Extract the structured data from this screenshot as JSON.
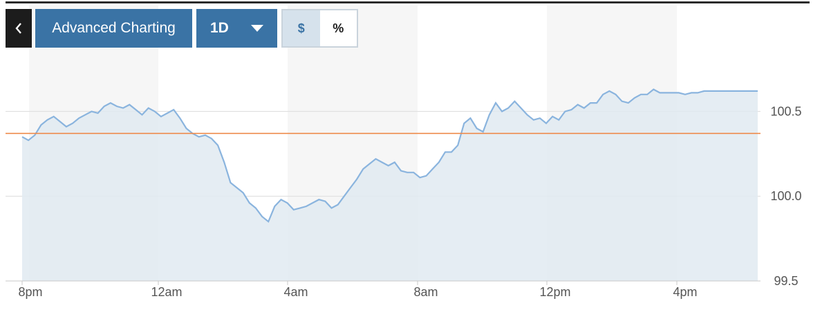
{
  "toolbar": {
    "back_icon": "chevron-left-icon",
    "advanced_label": "Advanced Charting",
    "range_label": "1D",
    "range_icon": "caret-down-icon",
    "dollar_label": "$",
    "percent_label": "%"
  },
  "colors": {
    "line": "#8ab4de",
    "area": "#e1eaf1",
    "reference": "#ee8a4a",
    "button": "#3a73a5",
    "band": "#f6f6f6"
  },
  "chart_data": {
    "type": "area",
    "x_ticks": [
      "8pm",
      "12am",
      "4am",
      "8am",
      "12pm",
      "4pm"
    ],
    "y_ticks": [
      "100.5",
      "100.0",
      "99.5"
    ],
    "y_tick_values": [
      100.5,
      100.0,
      99.5
    ],
    "ylim": [
      99.5,
      100.75
    ],
    "xlim": [
      0,
      23.3
    ],
    "reference_value": 100.37,
    "grid": true,
    "series": [
      {
        "x": [
          0,
          0.2,
          0.4,
          0.6,
          0.8,
          1,
          1.2,
          1.4,
          1.6,
          1.8,
          2,
          2.2,
          2.4,
          2.6,
          2.8,
          3,
          3.2,
          3.4,
          3.6,
          3.8,
          4,
          4.2,
          4.4,
          4.6,
          4.8,
          5,
          5.2,
          5.4,
          5.6,
          5.8,
          6,
          6.2,
          6.4,
          6.6,
          6.8,
          7,
          7.2,
          7.4,
          7.6,
          7.8,
          8,
          8.2,
          8.4,
          8.6,
          8.8,
          9,
          9.2,
          9.4,
          9.6,
          9.8,
          10,
          10.2,
          10.4,
          10.6,
          10.8,
          11,
          11.2,
          11.4,
          11.6,
          11.8,
          12,
          12.2,
          12.4,
          12.6,
          12.8,
          13,
          13.2,
          13.4,
          13.6,
          13.8,
          14,
          14.2,
          14.4,
          14.6,
          14.8,
          15,
          15.2,
          15.4,
          15.6,
          15.8,
          16,
          16.2,
          16.4,
          16.6,
          16.8,
          17,
          17.2,
          17.4,
          17.6,
          17.8,
          18,
          18.2,
          18.4,
          18.6,
          18.8,
          19,
          19.2,
          19.4,
          19.6,
          19.8,
          20,
          20.2,
          20.4,
          20.6,
          20.8,
          21,
          21.2,
          21.4,
          21.6,
          21.8,
          22,
          22.2,
          22.4,
          22.6,
          22.8,
          23,
          23.3
        ],
        "y": [
          100.35,
          100.33,
          100.36,
          100.42,
          100.45,
          100.47,
          100.44,
          100.41,
          100.43,
          100.46,
          100.48,
          100.5,
          100.49,
          100.53,
          100.55,
          100.53,
          100.52,
          100.54,
          100.51,
          100.48,
          100.52,
          100.5,
          100.47,
          100.49,
          100.51,
          100.46,
          100.4,
          100.37,
          100.35,
          100.36,
          100.34,
          100.3,
          100.2,
          100.08,
          100.05,
          100.02,
          99.96,
          99.93,
          99.88,
          99.85,
          99.94,
          99.98,
          99.96,
          99.92,
          99.93,
          99.94,
          99.96,
          99.98,
          99.97,
          99.93,
          99.95,
          100.0,
          100.05,
          100.1,
          100.16,
          100.19,
          100.22,
          100.2,
          100.18,
          100.2,
          100.15,
          100.14,
          100.14,
          100.11,
          100.12,
          100.16,
          100.2,
          100.26,
          100.26,
          100.3,
          100.43,
          100.46,
          100.4,
          100.38,
          100.48,
          100.55,
          100.5,
          100.52,
          100.56,
          100.52,
          100.48,
          100.45,
          100.46,
          100.43,
          100.47,
          100.45,
          100.5,
          100.51,
          100.54,
          100.52,
          100.55,
          100.55,
          100.6,
          100.62,
          100.6,
          100.56,
          100.55,
          100.58,
          100.6,
          100.6,
          100.63,
          100.61,
          100.61,
          100.61,
          100.61,
          100.6,
          100.61,
          100.61,
          100.62,
          100.62,
          100.62,
          100.62,
          100.62,
          100.62,
          100.62,
          100.62,
          100.62
        ]
      }
    ]
  }
}
